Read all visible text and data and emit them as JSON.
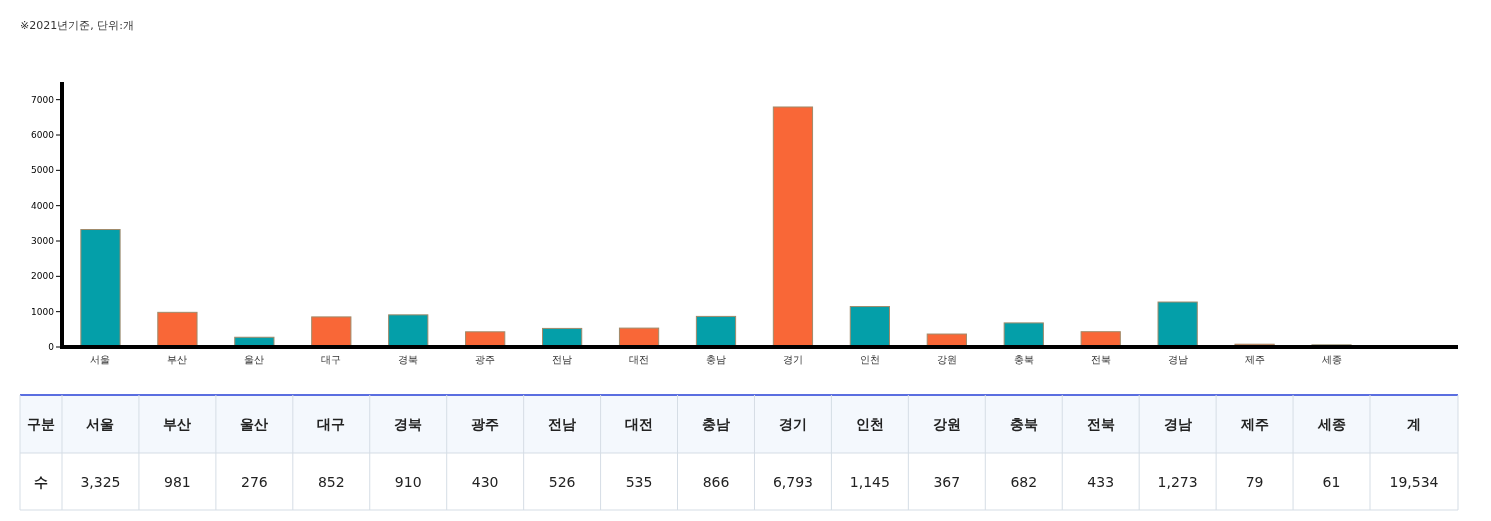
{
  "chart_data": {
    "type": "bar",
    "categories": [
      "서울",
      "부산",
      "울산",
      "대구",
      "경북",
      "광주",
      "전남",
      "대전",
      "충남",
      "경기",
      "인천",
      "강원",
      "충북",
      "전북",
      "경남",
      "제주",
      "세종"
    ],
    "values": [
      3325,
      981,
      276,
      852,
      910,
      430,
      526,
      535,
      866,
      6793,
      1145,
      367,
      682,
      433,
      1273,
      79,
      61
    ],
    "value_labels": [
      "3,325",
      "981",
      "276",
      "852",
      "910",
      "430",
      "526",
      "535",
      "866",
      "6,793",
      "1,145",
      "367",
      "682",
      "433",
      "1,273",
      "79",
      "61"
    ],
    "colors": [
      "#049fa9",
      "#f96737",
      "#049fa9",
      "#f96737",
      "#049fa9",
      "#f96737",
      "#049fa9",
      "#f96737",
      "#049fa9",
      "#f96737",
      "#049fa9",
      "#f96737",
      "#049fa9",
      "#f96737",
      "#049fa9",
      "#f96737",
      "#049fa9"
    ],
    "ylim": [
      0,
      7500
    ],
    "yticks": [
      0,
      1000,
      2000,
      3000,
      4000,
      5000,
      6000,
      7000
    ],
    "grid": false,
    "annotations": [
      "※2021년기준, 단위:개",
      "구분",
      "수",
      "계",
      "19,534"
    ]
  }
}
